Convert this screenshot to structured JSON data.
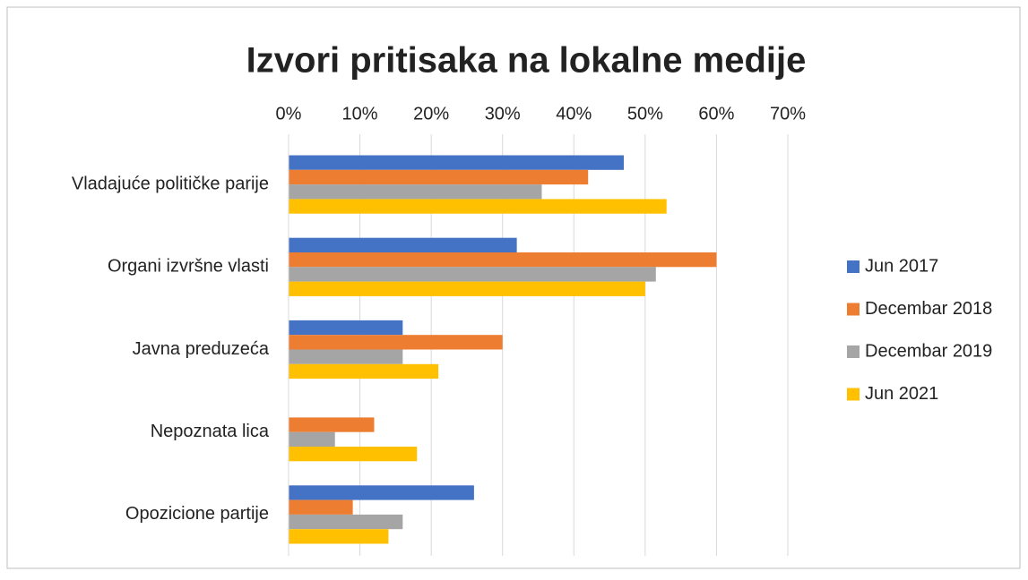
{
  "chart_data": {
    "type": "bar",
    "orientation": "horizontal",
    "title": "Izvori pritisaka na lokalne medije",
    "categories": [
      "Vladajuće političke parije",
      "Organi izvršne vlasti",
      "Javna preduzeća",
      "Nepoznata lica",
      "Opozicione partije"
    ],
    "series": [
      {
        "name": "Jun 2017",
        "color": "#4472c4",
        "values": [
          47,
          32,
          16,
          null,
          26
        ]
      },
      {
        "name": "Decembar 2018",
        "color": "#ed7d31",
        "values": [
          42,
          60,
          30,
          12,
          9
        ]
      },
      {
        "name": "Decembar 2019",
        "color": "#a5a5a5",
        "values": [
          35.5,
          51.5,
          16,
          6.5,
          16
        ]
      },
      {
        "name": "Jun 2021",
        "color": "#ffc000",
        "values": [
          53,
          50,
          21,
          18,
          14
        ]
      }
    ],
    "xlim": [
      0,
      70
    ],
    "xticks": [
      {
        "value": 0,
        "label": "0%"
      },
      {
        "value": 10,
        "label": "10%"
      },
      {
        "value": 20,
        "label": "20%"
      },
      {
        "value": 30,
        "label": "30%"
      },
      {
        "value": 40,
        "label": "40%"
      },
      {
        "value": 50,
        "label": "50%"
      },
      {
        "value": 60,
        "label": "60%"
      },
      {
        "value": 70,
        "label": "70%"
      }
    ],
    "grid": true,
    "legend": "right"
  }
}
